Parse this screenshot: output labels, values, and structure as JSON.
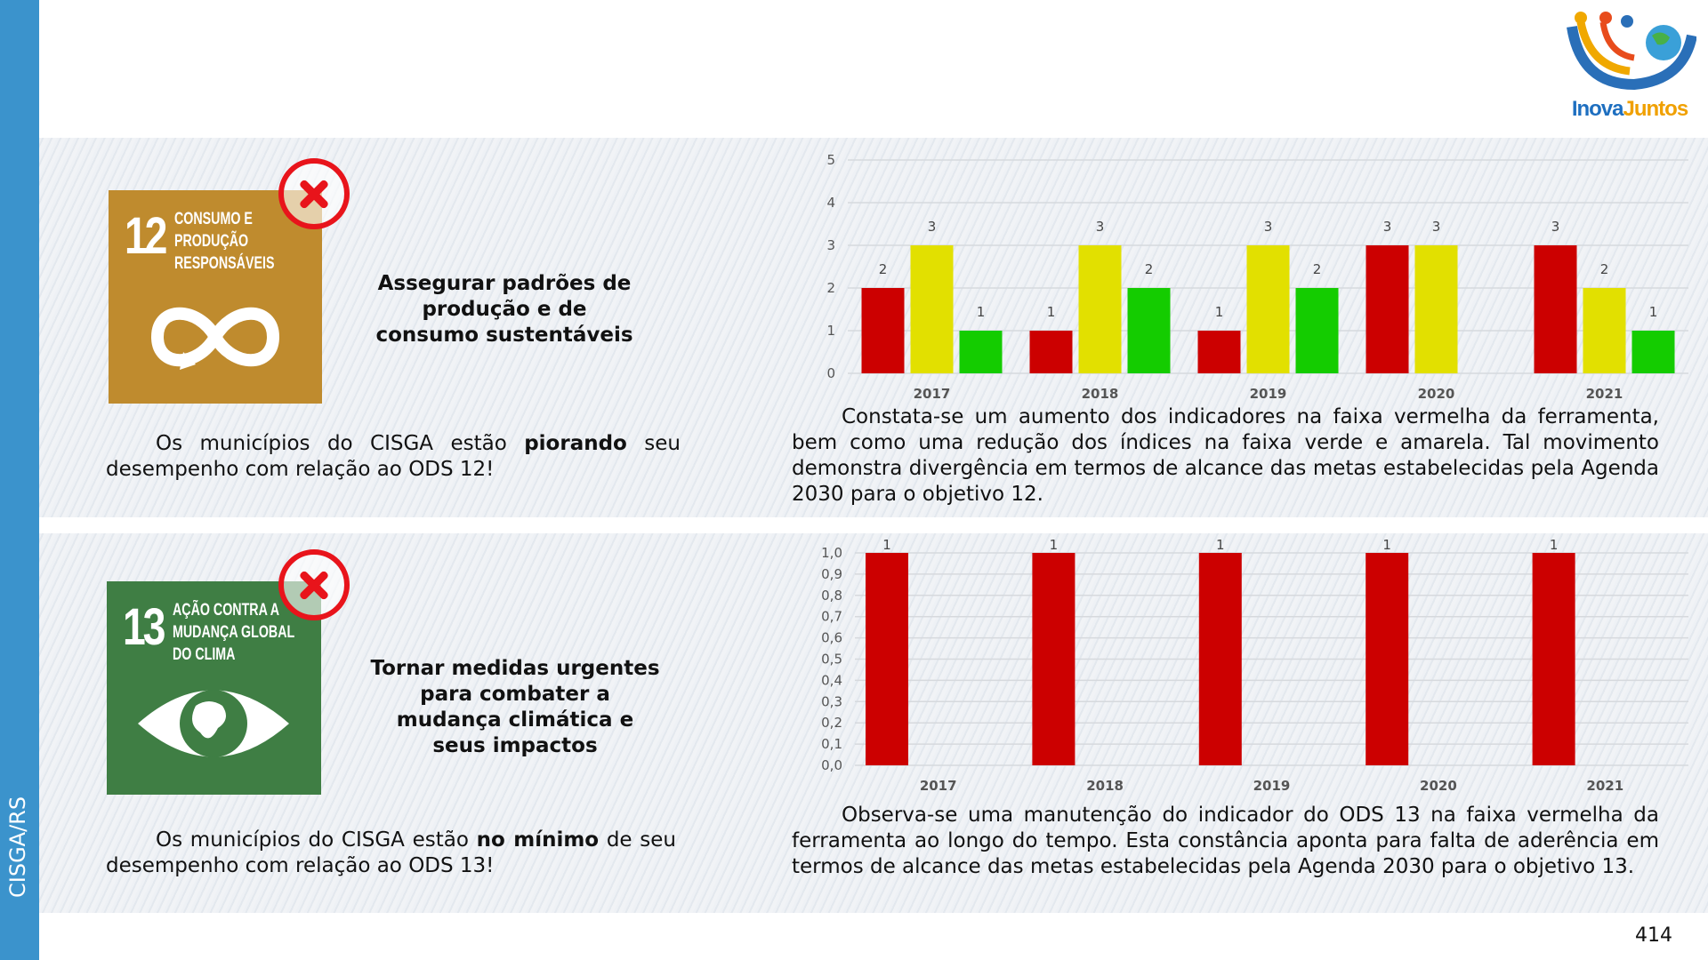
{
  "sidebar": {
    "label": "CISGA/RS"
  },
  "logo": {
    "text_a": "Inova",
    "text_b": "Juntos"
  },
  "sdg12": {
    "number": "12",
    "label_lines": [
      "CONSUMO E",
      "PRODUÇÃO",
      "RESPONSÁVEIS"
    ],
    "status_icon": "x-mark-icon",
    "title": "Assegurar padrões de produção e de consumo sustentáveis",
    "summary_pre": "Os municípios do CISGA estão ",
    "summary_bold": "piorando",
    "summary_post": " seu desempenho com relação ao ODS 12!",
    "analysis": "Constata-se um aumento dos indicadores na faixa vermelha da ferramenta, bem como uma redução dos índices na faixa verde e amarela. Tal movimento demonstra divergência em termos de alcance das metas estabelecidas pela Agenda 2030 para o objetivo 12."
  },
  "sdg13": {
    "number": "13",
    "label_lines": [
      "AÇÃO CONTRA A",
      "MUDANÇA GLOBAL",
      "DO CLIMA"
    ],
    "status_icon": "x-mark-icon",
    "title": "Tornar medidas urgentes para combater a mudança climática e seus impactos",
    "summary_pre": "Os municípios do CISGA estão ",
    "summary_bold": "no mínimo",
    "summary_post": " de seu desempenho com relação ao ODS 13!",
    "analysis": "Observa-se uma manutenção do indicador do ODS 13 na faixa vermelha da ferramenta ao longo do tempo. Esta constância aponta para falta de aderência em termos de alcance das metas estabelecidas pela Agenda 2030 para o objetivo 13."
  },
  "page_number": "414",
  "chart_data": [
    {
      "type": "bar",
      "categories": [
        "2017",
        "2018",
        "2019",
        "2020",
        "2021"
      ],
      "ylim": [
        0,
        5
      ],
      "yticks": [
        "0",
        "1",
        "2",
        "3",
        "4",
        "5"
      ],
      "series": [
        {
          "name": "vermelho",
          "color": "#cc0000",
          "values": [
            2,
            1,
            1,
            3,
            3
          ]
        },
        {
          "name": "amarelo",
          "color": "#e2e000",
          "values": [
            3,
            3,
            3,
            3,
            2
          ]
        },
        {
          "name": "verde",
          "color": "#14cc00",
          "values": [
            1,
            2,
            2,
            0,
            1
          ]
        }
      ]
    },
    {
      "type": "bar",
      "categories": [
        "2017",
        "2018",
        "2019",
        "2020",
        "2021"
      ],
      "ylim": [
        0,
        1
      ],
      "yticks": [
        "0,0",
        "0,1",
        "0,2",
        "0,3",
        "0,4",
        "0,5",
        "0,6",
        "0,7",
        "0,8",
        "0,9",
        "1,0"
      ],
      "series": [
        {
          "name": "vermelho",
          "color": "#cc0000",
          "values": [
            1,
            1,
            1,
            1,
            1
          ]
        }
      ]
    }
  ]
}
